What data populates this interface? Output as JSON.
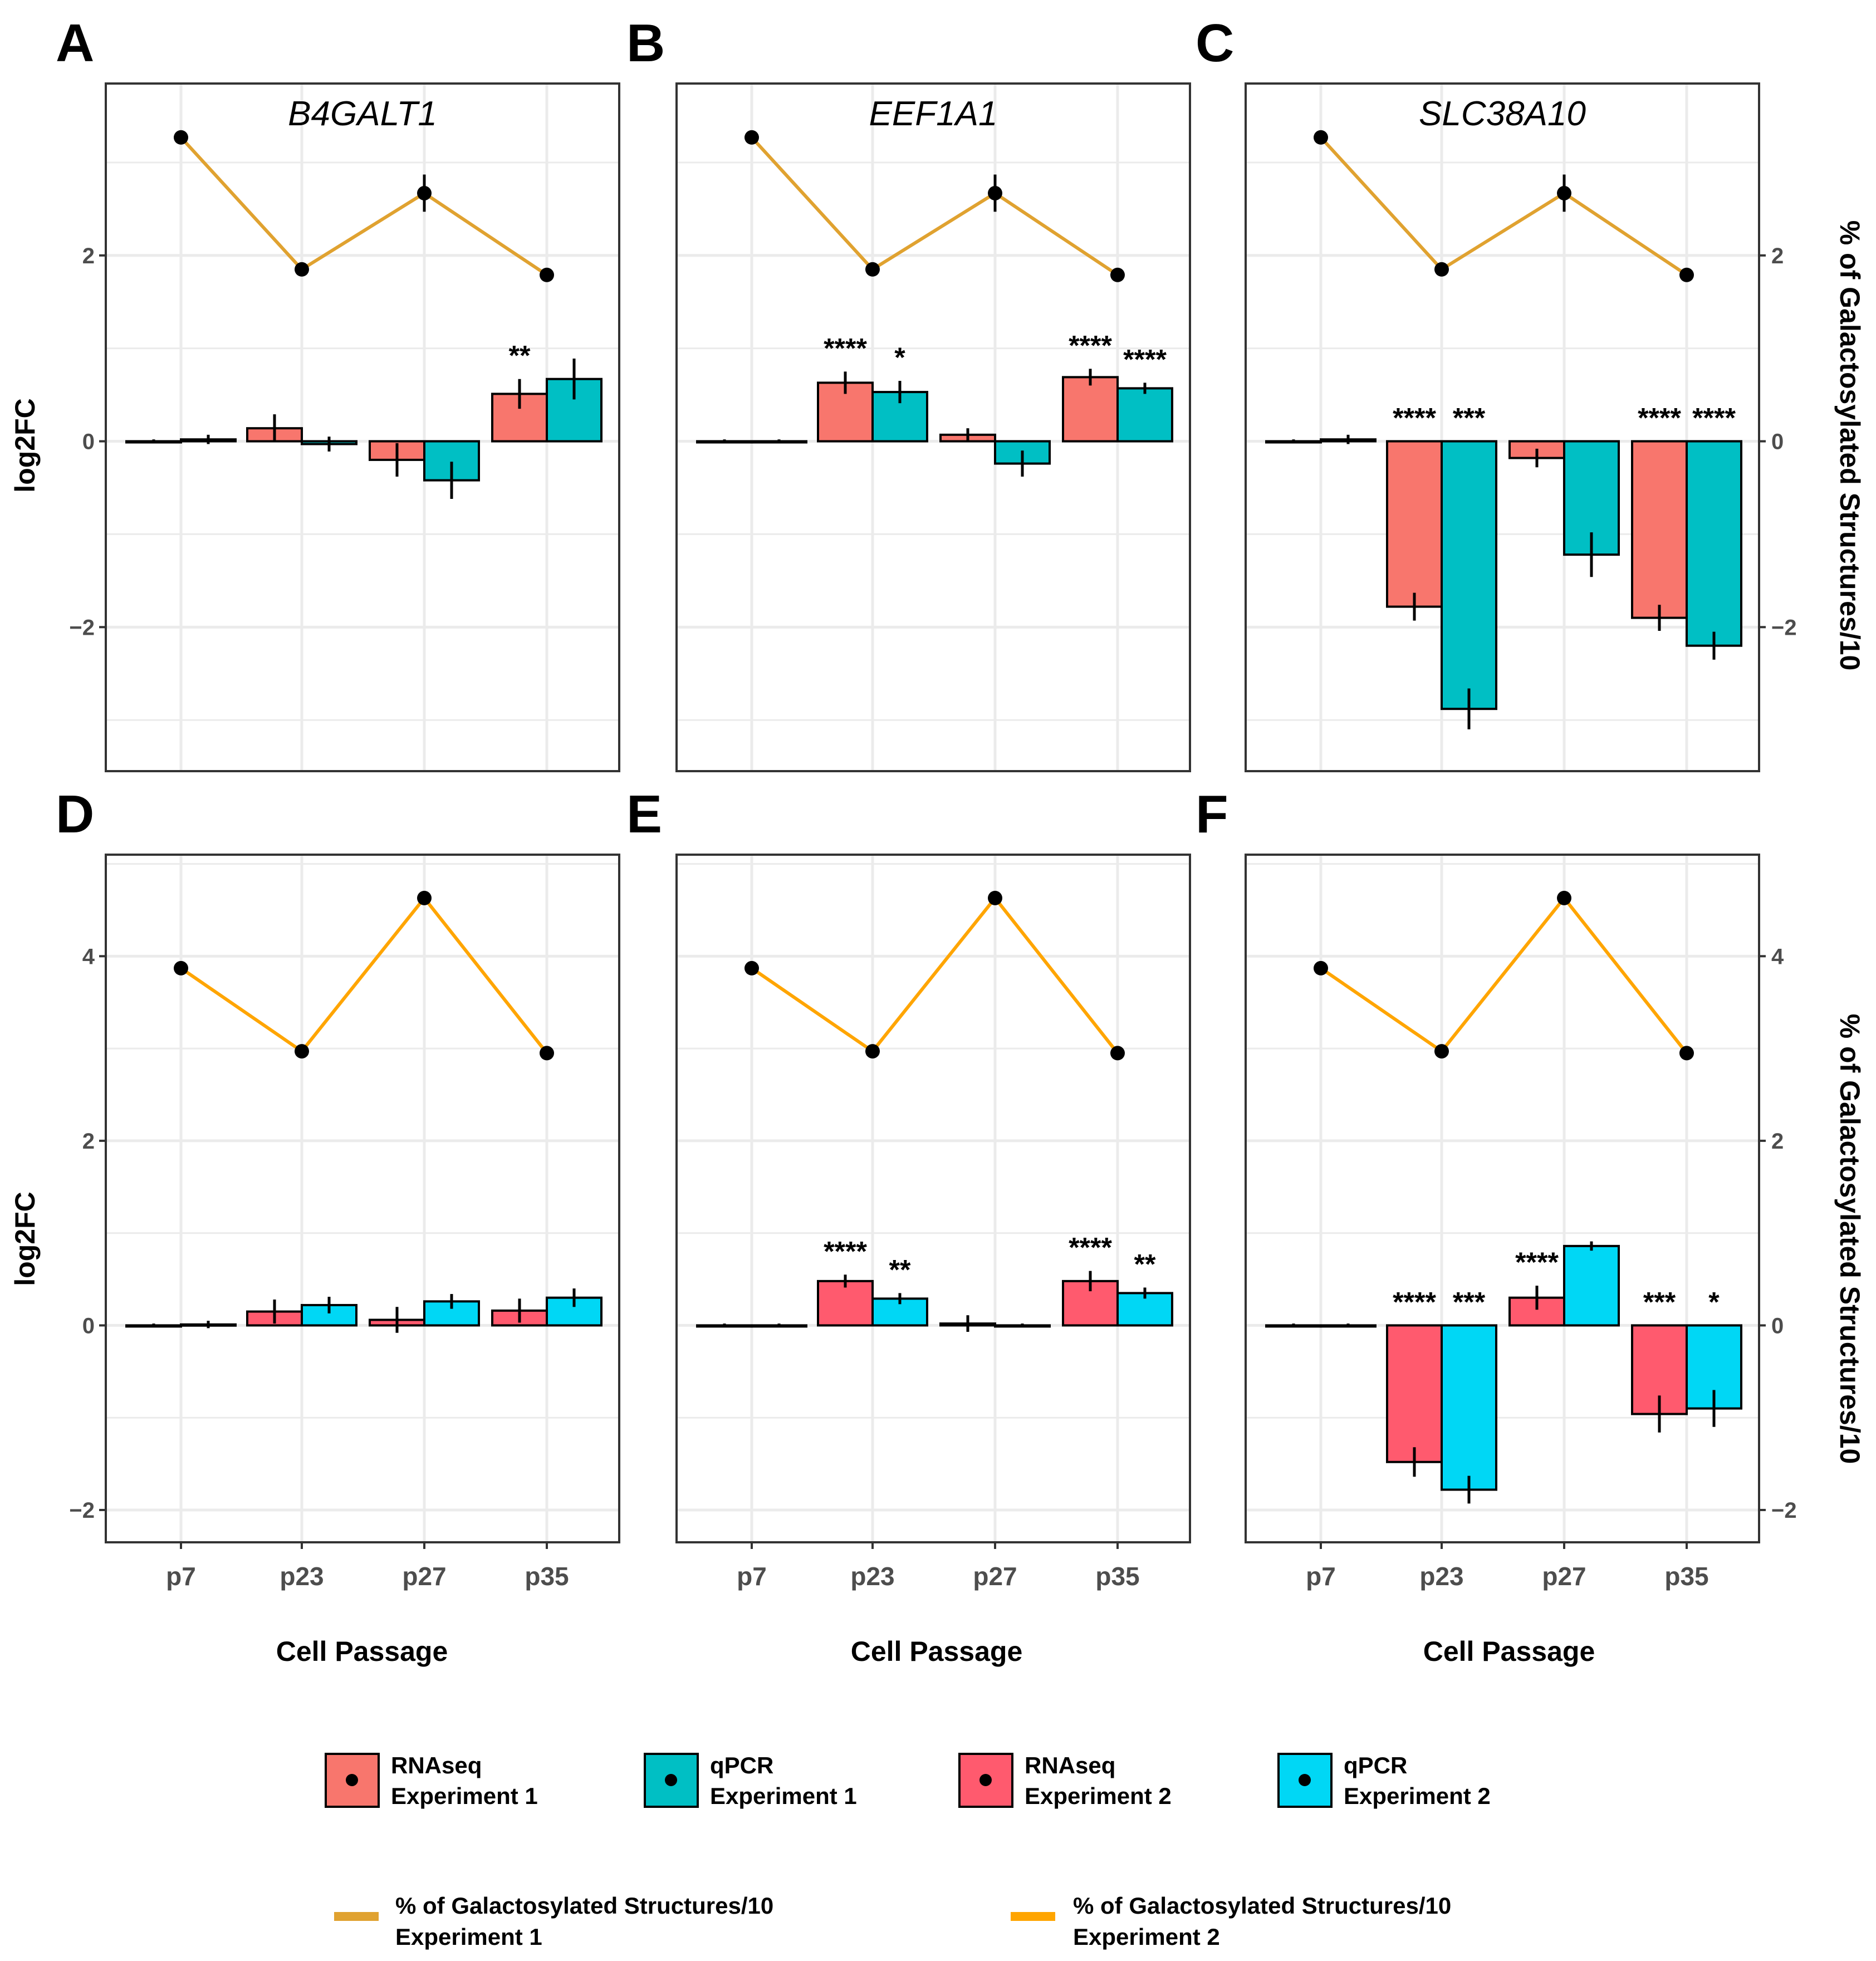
{
  "figure": {
    "x_axis_title": "Cell Passage",
    "y_axis_title": "log2FC",
    "y2_axis_title": "% of Galactosylated Structures/10"
  },
  "colors": {
    "rnaseq_exp1": "#F8766D",
    "qpcr_exp1": "#00BFC4",
    "rnaseq_exp2": "#FF5A6E",
    "qpcr_exp2": "#00D7F5",
    "line_exp1": "#E0A230",
    "line_exp2": "#FFA500"
  },
  "legend": {
    "bars": [
      {
        "line1": "RNAseq",
        "line2": "Experiment 1",
        "color": "#F8766D"
      },
      {
        "line1": "qPCR",
        "line2": "Experiment 1",
        "color": "#00BFC4"
      },
      {
        "line1": "RNAseq",
        "line2": "Experiment 2",
        "color": "#FF5A6E"
      },
      {
        "line1": "qPCR",
        "line2": "Experiment 2",
        "color": "#00D7F5"
      }
    ],
    "lines": [
      {
        "line1": "% of Galactosylated Structures/10",
        "line2": "Experiment 1",
        "color": "#E0A230"
      },
      {
        "line1": "% of Galactosylated Structures/10",
        "line2": "Experiment 2",
        "color": "#FFA500"
      }
    ]
  },
  "chart_data": [
    {
      "type": "bar",
      "panel": "A",
      "gene": "B4GALT1",
      "categories": [
        "p7",
        "p23",
        "p27",
        "p35"
      ],
      "ylim": [
        -3.55,
        3.85
      ],
      "yticks": [
        -2,
        0,
        2
      ],
      "grid": true,
      "series": [
        {
          "name": "RNAseq Experiment 1",
          "values": [
            0.0,
            0.14,
            -0.2,
            0.51
          ],
          "errors": [
            0.02,
            0.15,
            0.18,
            0.16
          ],
          "sig": [
            "",
            "",
            "",
            "**"
          ]
        },
        {
          "name": "qPCR Experiment 1",
          "values": [
            0.02,
            -0.03,
            -0.42,
            0.67
          ],
          "errors": [
            0.05,
            0.08,
            0.2,
            0.22
          ],
          "sig": [
            "",
            "",
            "",
            ""
          ]
        }
      ],
      "line": {
        "name": "% of Galactosylated Structures/10 Experiment 1",
        "values": [
          3.27,
          1.85,
          2.67,
          1.79
        ],
        "errors": [
          0.05,
          0.05,
          0.2,
          0.05
        ]
      }
    },
    {
      "type": "bar",
      "panel": "B",
      "gene": "EEF1A1",
      "categories": [
        "p7",
        "p23",
        "p27",
        "p35"
      ],
      "ylim": [
        -3.55,
        3.85
      ],
      "yticks": [
        -2,
        0,
        2
      ],
      "grid": true,
      "series": [
        {
          "name": "RNAseq Experiment 1",
          "values": [
            0.0,
            0.63,
            0.07,
            0.69
          ],
          "errors": [
            0.02,
            0.12,
            0.07,
            0.09
          ],
          "sig": [
            "",
            "****",
            "",
            "****"
          ]
        },
        {
          "name": "qPCR Experiment 1",
          "values": [
            0.0,
            0.53,
            -0.24,
            0.57
          ],
          "errors": [
            0.02,
            0.12,
            0.14,
            0.06
          ],
          "sig": [
            "",
            "*",
            "",
            "****"
          ]
        }
      ],
      "line": {
        "name": "% of Galactosylated Structures/10 Experiment 1",
        "values": [
          3.27,
          1.85,
          2.67,
          1.79
        ],
        "errors": [
          0.05,
          0.05,
          0.2,
          0.05
        ]
      }
    },
    {
      "type": "bar",
      "panel": "C",
      "gene": "SLC38A10",
      "categories": [
        "p7",
        "p23",
        "p27",
        "p35"
      ],
      "ylim": [
        -3.55,
        3.85
      ],
      "yticks": [
        -2,
        0,
        2
      ],
      "grid": true,
      "series": [
        {
          "name": "RNAseq Experiment 1",
          "values": [
            0.0,
            -1.78,
            -0.18,
            -1.9
          ],
          "errors": [
            0.02,
            0.15,
            0.1,
            0.14
          ],
          "sig": [
            "",
            "****",
            "",
            "****"
          ]
        },
        {
          "name": "qPCR Experiment 1",
          "values": [
            0.02,
            -2.88,
            -1.22,
            -2.2
          ],
          "errors": [
            0.05,
            0.22,
            0.24,
            0.15
          ],
          "sig": [
            "",
            "***",
            "",
            "****"
          ]
        }
      ],
      "line": {
        "name": "% of Galactosylated Structures/10 Experiment 1",
        "values": [
          3.27,
          1.85,
          2.67,
          1.79
        ],
        "errors": [
          0.05,
          0.05,
          0.2,
          0.05
        ]
      }
    },
    {
      "type": "bar",
      "panel": "D",
      "gene": "",
      "categories": [
        "p7",
        "p23",
        "p27",
        "p35"
      ],
      "ylim": [
        -2.35,
        5.1
      ],
      "yticks": [
        -2,
        0,
        2,
        4
      ],
      "grid": true,
      "series": [
        {
          "name": "RNAseq Experiment 2",
          "values": [
            0.0,
            0.15,
            0.06,
            0.16
          ],
          "errors": [
            0.02,
            0.13,
            0.14,
            0.13
          ],
          "sig": [
            "",
            "",
            "",
            ""
          ]
        },
        {
          "name": "qPCR Experiment 2",
          "values": [
            0.01,
            0.22,
            0.26,
            0.3
          ],
          "errors": [
            0.04,
            0.09,
            0.08,
            0.1
          ],
          "sig": [
            "",
            "",
            "",
            ""
          ]
        }
      ],
      "line": {
        "name": "% of Galactosylated Structures/10 Experiment 2",
        "values": [
          3.87,
          2.97,
          4.63,
          2.95
        ],
        "errors": [
          0.05,
          0.04,
          0.04,
          0.04
        ]
      }
    },
    {
      "type": "bar",
      "panel": "E",
      "gene": "",
      "categories": [
        "p7",
        "p23",
        "p27",
        "p35"
      ],
      "ylim": [
        -2.35,
        5.1
      ],
      "yticks": [
        -2,
        0,
        2,
        4
      ],
      "grid": true,
      "series": [
        {
          "name": "RNAseq Experiment 2",
          "values": [
            0.0,
            0.48,
            0.02,
            0.48
          ],
          "errors": [
            0.02,
            0.07,
            0.09,
            0.11
          ],
          "sig": [
            "",
            "****",
            "",
            "****"
          ]
        },
        {
          "name": "qPCR Experiment 2",
          "values": [
            0.0,
            0.29,
            0.0,
            0.35
          ],
          "errors": [
            0.02,
            0.06,
            0.02,
            0.06
          ],
          "sig": [
            "",
            "**",
            "",
            "**"
          ]
        }
      ],
      "line": {
        "name": "% of Galactosylated Structures/10 Experiment 2",
        "values": [
          3.87,
          2.97,
          4.63,
          2.95
        ],
        "errors": [
          0.05,
          0.04,
          0.04,
          0.04
        ]
      }
    },
    {
      "type": "bar",
      "panel": "F",
      "gene": "",
      "categories": [
        "p7",
        "p23",
        "p27",
        "p35"
      ],
      "ylim": [
        -2.35,
        5.1
      ],
      "yticks": [
        -2,
        0,
        2,
        4
      ],
      "grid": true,
      "series": [
        {
          "name": "RNAseq Experiment 2",
          "values": [
            0.0,
            -1.48,
            0.3,
            -0.96
          ],
          "errors": [
            0.02,
            0.16,
            0.13,
            0.2
          ],
          "sig": [
            "",
            "****",
            "****",
            "***"
          ]
        },
        {
          "name": "qPCR Experiment 2",
          "values": [
            0.0,
            -1.78,
            0.86,
            -0.9
          ],
          "errors": [
            0.02,
            0.15,
            0.05,
            0.2
          ],
          "sig": [
            "",
            "***",
            "",
            "*"
          ]
        }
      ],
      "line": {
        "name": "% of Galactosylated Structures/10 Experiment 2",
        "values": [
          3.87,
          2.97,
          4.63,
          2.95
        ],
        "errors": [
          0.05,
          0.04,
          0.04,
          0.04
        ]
      }
    }
  ]
}
